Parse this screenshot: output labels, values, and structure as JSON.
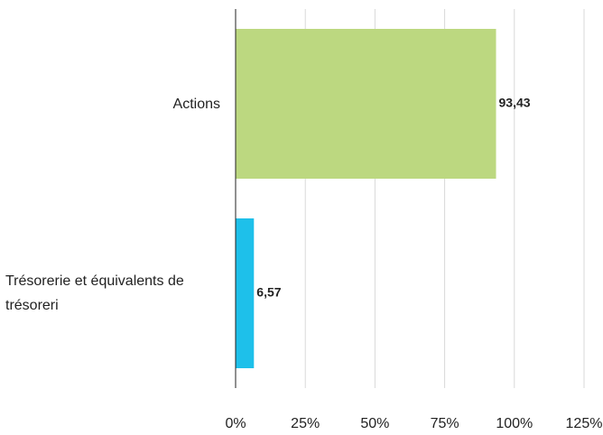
{
  "chart_data": {
    "type": "bar",
    "orientation": "horizontal",
    "categories": [
      "Actions",
      "Trésorerie et équivalents de trésoreri"
    ],
    "values": [
      93.43,
      6.57
    ],
    "value_labels": [
      "93,43",
      "6,57"
    ],
    "colors": [
      "#bcd880",
      "#1ec0ea"
    ],
    "xlim": [
      0,
      125
    ],
    "xticks": [
      {
        "value": 0,
        "label": "0%"
      },
      {
        "value": 25,
        "label": "25%"
      },
      {
        "value": 50,
        "label": "50%"
      },
      {
        "value": 75,
        "label": "75%"
      },
      {
        "value": 100,
        "label": "100%"
      },
      {
        "value": 125,
        "label": "125%"
      }
    ],
    "grid": true
  }
}
